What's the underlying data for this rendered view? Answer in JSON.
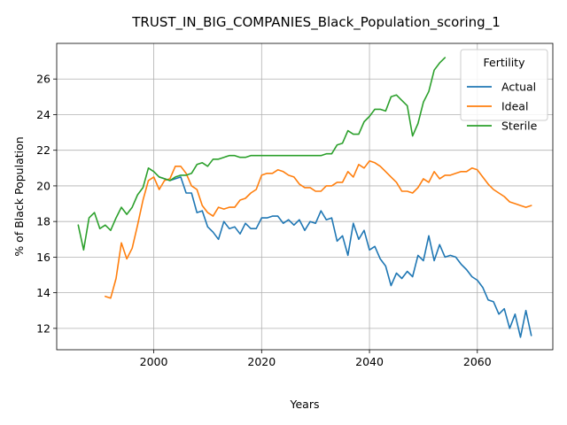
{
  "chart_data": {
    "type": "line",
    "title": "TRUST_IN_BIG_COMPANIES_Black_Population_scoring_1",
    "xlabel": "Years",
    "ylabel": "% of Black Population",
    "xlim": [
      1982,
      2074
    ],
    "ylim": [
      10.8,
      28.0
    ],
    "xticks": [
      2000,
      2020,
      2040,
      2060
    ],
    "yticks": [
      12,
      14,
      16,
      18,
      20,
      22,
      24,
      26
    ],
    "grid": true,
    "legend": {
      "title": "Fertility",
      "position": "top-right"
    },
    "series": [
      {
        "name": "Actual",
        "color": "#1f77b4",
        "x": [
          2001,
          2002,
          2003,
          2004,
          2005,
          2006,
          2007,
          2008,
          2009,
          2010,
          2011,
          2012,
          2013,
          2014,
          2015,
          2016,
          2017,
          2018,
          2019,
          2020,
          2021,
          2022,
          2023,
          2024,
          2025,
          2026,
          2027,
          2028,
          2029,
          2030,
          2031,
          2032,
          2033,
          2034,
          2035,
          2036,
          2037,
          2038,
          2039,
          2040,
          2041,
          2042,
          2043,
          2044,
          2045,
          2046,
          2047,
          2048,
          2049,
          2050,
          2051,
          2052,
          2053,
          2054,
          2055,
          2056,
          2057,
          2058,
          2059,
          2060,
          2061,
          2062,
          2063,
          2064,
          2065,
          2066,
          2067,
          2068,
          2069,
          2070
        ],
        "y": [
          20.5,
          20.4,
          20.3,
          20.4,
          20.5,
          19.6,
          19.6,
          18.5,
          18.6,
          17.7,
          17.4,
          17.0,
          18.0,
          17.6,
          17.7,
          17.3,
          17.9,
          17.6,
          17.6,
          18.2,
          18.2,
          18.3,
          18.3,
          17.9,
          18.1,
          17.8,
          18.1,
          17.5,
          18.0,
          17.9,
          18.6,
          18.1,
          18.2,
          16.9,
          17.2,
          16.1,
          17.9,
          17.0,
          17.5,
          16.4,
          16.6,
          15.9,
          15.5,
          14.4,
          15.1,
          14.8,
          15.2,
          14.9,
          16.1,
          15.8,
          17.2,
          15.8,
          16.7,
          16.0,
          16.1,
          16.0,
          15.6,
          15.3,
          14.9,
          14.7,
          14.3,
          13.6,
          13.5,
          12.8,
          13.1,
          12.0,
          12.8,
          11.5,
          13.0,
          11.6
        ]
      },
      {
        "name": "Ideal",
        "color": "#ff7f0e",
        "x": [
          1991,
          1992,
          1993,
          1994,
          1995,
          1996,
          1997,
          1998,
          1999,
          2000,
          2001,
          2002,
          2003,
          2004,
          2005,
          2006,
          2007,
          2008,
          2009,
          2010,
          2011,
          2012,
          2013,
          2014,
          2015,
          2016,
          2017,
          2018,
          2019,
          2020,
          2021,
          2022,
          2023,
          2024,
          2025,
          2026,
          2027,
          2028,
          2029,
          2030,
          2031,
          2032,
          2033,
          2034,
          2035,
          2036,
          2037,
          2038,
          2039,
          2040,
          2041,
          2042,
          2043,
          2044,
          2045,
          2046,
          2047,
          2048,
          2049,
          2050,
          2051,
          2052,
          2053,
          2054,
          2055,
          2056,
          2057,
          2058,
          2059,
          2060,
          2061,
          2062,
          2063,
          2064,
          2065,
          2066,
          2067,
          2068,
          2069,
          2070
        ],
        "y": [
          13.8,
          13.7,
          14.8,
          16.8,
          15.9,
          16.5,
          17.8,
          19.2,
          20.3,
          20.5,
          19.8,
          20.3,
          20.4,
          21.1,
          21.1,
          20.7,
          20.0,
          19.8,
          18.9,
          18.5,
          18.3,
          18.8,
          18.7,
          18.8,
          18.8,
          19.2,
          19.3,
          19.6,
          19.8,
          20.6,
          20.7,
          20.7,
          20.9,
          20.8,
          20.6,
          20.5,
          20.1,
          19.9,
          19.9,
          19.7,
          19.7,
          20.0,
          20.0,
          20.2,
          20.2,
          20.8,
          20.5,
          21.2,
          21.0,
          21.4,
          21.3,
          21.1,
          20.8,
          20.5,
          20.2,
          19.7,
          19.7,
          19.6,
          19.9,
          20.4,
          20.2,
          20.8,
          20.4,
          20.6,
          20.6,
          20.7,
          20.8,
          20.8,
          21.0,
          20.9,
          20.5,
          20.1,
          19.8,
          19.6,
          19.4,
          19.1,
          19.0,
          18.9,
          18.8,
          18.9
        ]
      },
      {
        "name": "Sterile",
        "color": "#2ca02c",
        "x": [
          1986,
          1987,
          1988,
          1989,
          1990,
          1991,
          1992,
          1993,
          1994,
          1995,
          1996,
          1997,
          1998,
          1999,
          2000,
          2001,
          2002,
          2003,
          2004,
          2005,
          2006,
          2007,
          2008,
          2009,
          2010,
          2011,
          2012,
          2013,
          2014,
          2015,
          2016,
          2017,
          2018,
          2019,
          2020,
          2021,
          2022,
          2023,
          2024,
          2025,
          2026,
          2027,
          2028,
          2029,
          2030,
          2031,
          2032,
          2033,
          2034,
          2035,
          2036,
          2037,
          2038,
          2039,
          2040,
          2041,
          2042,
          2043,
          2044,
          2045,
          2046,
          2047,
          2048,
          2049,
          2050,
          2051,
          2052,
          2053,
          2054
        ],
        "y": [
          17.8,
          16.4,
          18.2,
          18.5,
          17.6,
          17.8,
          17.5,
          18.2,
          18.8,
          18.4,
          18.8,
          19.5,
          19.9,
          21.0,
          20.8,
          20.5,
          20.4,
          20.3,
          20.5,
          20.6,
          20.6,
          20.7,
          21.2,
          21.3,
          21.1,
          21.5,
          21.5,
          21.6,
          21.7,
          21.7,
          21.6,
          21.6,
          21.7,
          21.7,
          21.7,
          21.7,
          21.7,
          21.7,
          21.7,
          21.7,
          21.7,
          21.7,
          21.7,
          21.7,
          21.7,
          21.7,
          21.8,
          21.8,
          22.3,
          22.4,
          23.1,
          22.9,
          22.9,
          23.6,
          23.9,
          24.3,
          24.3,
          24.2,
          25.0,
          25.1,
          24.8,
          24.5,
          22.8,
          23.5,
          24.7,
          25.3,
          26.5,
          26.9,
          27.2
        ]
      }
    ]
  }
}
